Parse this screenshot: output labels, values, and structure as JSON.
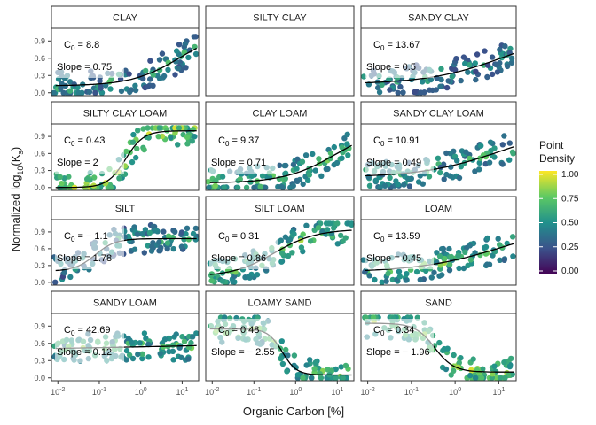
{
  "chart_data": {
    "type": "scatter",
    "subtype": "faceted-hexbin-with-fitted-curve",
    "xlabel": "Organic Carbon [%]",
    "ylabel_main": "Normalized log",
    "ylabel_sub_log": "10",
    "ylabel_paren_open": "(K",
    "ylabel_sub_k": "s",
    "ylabel_paren_close": ")",
    "x_scale": "log10",
    "x_range": [
      0.007,
      25
    ],
    "x_ticks": [
      0.01,
      0.1,
      1,
      10
    ],
    "x_tick_base": "10",
    "x_tick_exponents": [
      "-2",
      "-1",
      "0",
      "1"
    ],
    "y_range": [
      -0.05,
      1.12
    ],
    "y_ticks": [
      0.0,
      0.3,
      0.6,
      0.9
    ],
    "y_tick_labels": [
      "0.0",
      "0.3",
      "0.6",
      "0.9"
    ],
    "grid": false,
    "legend": {
      "title_line1": "Point",
      "title_line2": "Density",
      "placement": "right",
      "range": [
        0,
        1
      ],
      "tick_labels": [
        "1.00",
        "0.75",
        "0.50",
        "0.25",
        "0.00"
      ],
      "colormap": [
        "#440154",
        "#3b528b",
        "#21908c",
        "#5dc963",
        "#fde725"
      ]
    },
    "panels": [
      {
        "name": "CLAY",
        "has_data": true,
        "c0_prefix": "C",
        "c0_sub": "0",
        "c0_value": "= 8.8",
        "slope_label": "Slope = 0.75",
        "c0": 8.8,
        "slope": 0.75,
        "y_low": 0.12,
        "y_high": 1.1,
        "density": 0.35
      },
      {
        "name": "SILTY CLAY",
        "has_data": false
      },
      {
        "name": "SANDY CLAY",
        "has_data": true,
        "c0_prefix": "C",
        "c0_sub": "0",
        "c0_value": "= 13.67",
        "slope_label": "Slope = 0.5",
        "c0": 13.67,
        "slope": 0.5,
        "y_low": 0.15,
        "y_high": 1.1,
        "density": 0.3
      },
      {
        "name": "SILTY CLAY LOAM",
        "has_data": true,
        "c0_prefix": "C",
        "c0_sub": "0",
        "c0_value": "= 0.43",
        "slope_label": "Slope = 2",
        "c0": 0.43,
        "slope": 2,
        "y_low": 0.0,
        "y_high": 1.0,
        "density": 0.75
      },
      {
        "name": "CLAY LOAM",
        "has_data": true,
        "c0_prefix": "C",
        "c0_sub": "0",
        "c0_value": "= 9.37",
        "slope_label": "Slope = 0.71",
        "c0": 9.37,
        "slope": 0.71,
        "y_low": 0.08,
        "y_high": 1.1,
        "density": 0.5
      },
      {
        "name": "SANDY CLAY LOAM",
        "has_data": true,
        "c0_prefix": "C",
        "c0_sub": "0",
        "c0_value": "= 10.91",
        "slope_label": "Slope = 0.49",
        "c0": 10.91,
        "slope": 0.49,
        "y_low": 0.18,
        "y_high": 1.1,
        "density": 0.45
      },
      {
        "name": "SILT",
        "has_data": true,
        "c0_prefix": "C",
        "c0_sub": "0",
        "c0_value": "= − 1.1",
        "slope_label": "Slope = 1.78",
        "c0": -1.1,
        "slope": 1.78,
        "y_low": 0.2,
        "y_high": 0.78,
        "density": 0.35
      },
      {
        "name": "SILT LOAM",
        "has_data": true,
        "c0_prefix": "C",
        "c0_sub": "0",
        "c0_value": "= 0.31",
        "slope_label": "Slope = 0.86",
        "c0": 0.31,
        "slope": 0.86,
        "y_low": 0.1,
        "y_high": 0.95,
        "density": 0.55
      },
      {
        "name": "LOAM",
        "has_data": true,
        "c0_prefix": "C",
        "c0_sub": "0",
        "c0_value": "= 13.59",
        "slope_label": "Slope = 0.45",
        "c0": 13.59,
        "slope": 0.45,
        "y_low": 0.18,
        "y_high": 1.1,
        "density": 0.5
      },
      {
        "name": "SANDY LOAM",
        "has_data": true,
        "c0_prefix": "C",
        "c0_sub": "0",
        "c0_value": "= 42.69",
        "slope_label": "Slope = 0.12",
        "c0": 42.69,
        "slope": 0.12,
        "y_low": 0.45,
        "y_high": 0.68,
        "density": 0.55
      },
      {
        "name": "LOAMY SAND",
        "has_data": true,
        "c0_prefix": "C",
        "c0_sub": "0",
        "c0_value": "= 0.48",
        "slope_label": "Slope = − 2.55",
        "c0": 0.48,
        "slope": -2.55,
        "y_low": 0.05,
        "y_high": 0.85,
        "density": 0.6
      },
      {
        "name": "SAND",
        "has_data": true,
        "c0_prefix": "C",
        "c0_sub": "0",
        "c0_value": "= 0.34",
        "slope_label": "Slope = − 1.96",
        "c0": 0.34,
        "slope": -1.96,
        "y_low": 0.1,
        "y_high": 0.95,
        "density": 0.7
      }
    ]
  }
}
